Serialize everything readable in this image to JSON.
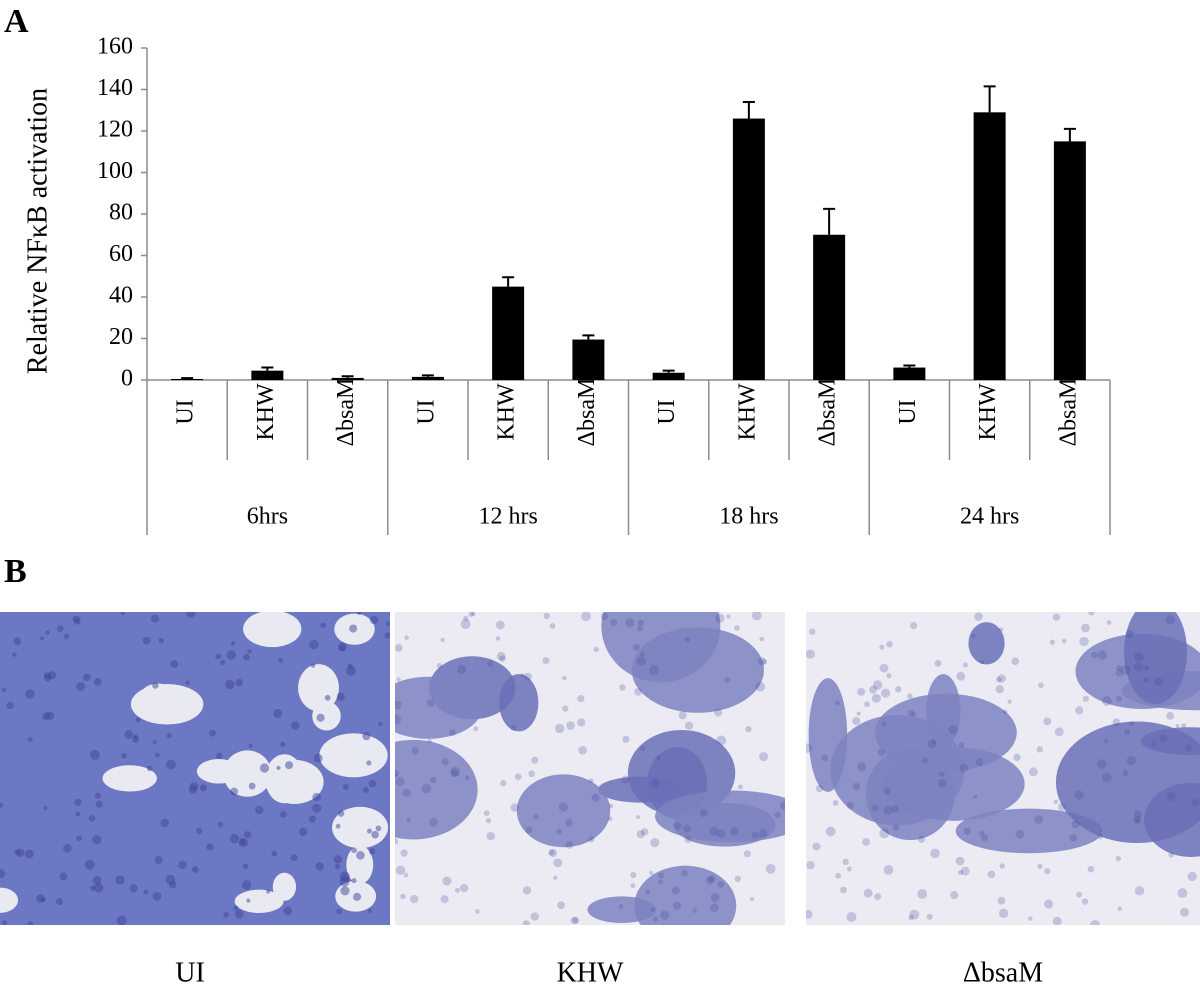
{
  "panel_labels": [
    "A",
    "B"
  ],
  "chart_data": {
    "type": "bar",
    "y_label": "Relative NFκB activation",
    "color": "#000000",
    "ylim": [
      0,
      160
    ],
    "yticks": [
      0,
      20,
      40,
      60,
      80,
      100,
      120,
      140,
      160
    ],
    "groups": [
      {
        "name": "6hrs",
        "categories": [
          "UI",
          "KHW",
          "ΔbsaM"
        ],
        "values": [
          0.5,
          4.5,
          1
        ],
        "errors": [
          0.4,
          1.5,
          0.8
        ]
      },
      {
        "name": "12 hrs",
        "categories": [
          "UI",
          "KHW",
          "ΔbsaM"
        ],
        "values": [
          1.5,
          45,
          19.5
        ],
        "errors": [
          0.7,
          4.5,
          2
        ]
      },
      {
        "name": "18 hrs",
        "categories": [
          "UI",
          "KHW",
          "ΔbsaM"
        ],
        "values": [
          3.5,
          126,
          70
        ],
        "errors": [
          1,
          8,
          12.5
        ]
      },
      {
        "name": "24 hrs",
        "categories": [
          "UI",
          "KHW",
          "ΔbsaM"
        ],
        "values": [
          6,
          129,
          115
        ],
        "errors": [
          1,
          12.5,
          6
        ]
      }
    ]
  },
  "micrographs": {
    "labels": [
      "UI",
      "KHW",
      "ΔbsaM"
    ]
  }
}
